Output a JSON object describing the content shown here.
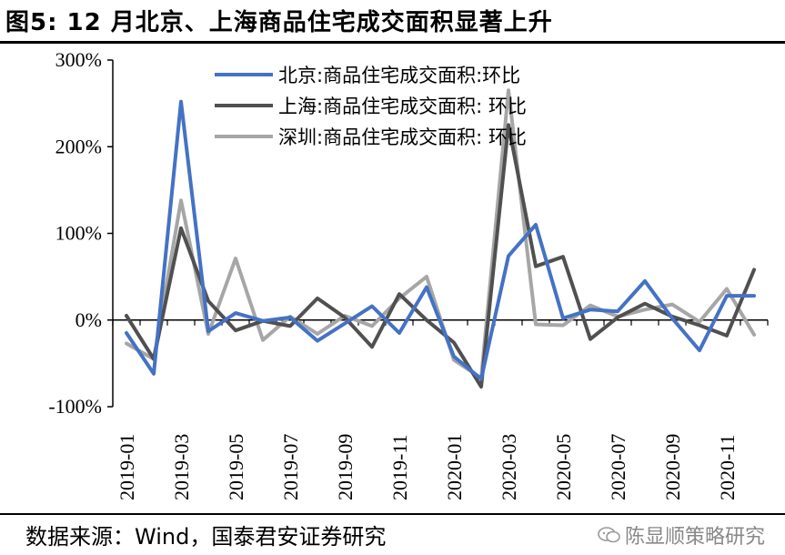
{
  "title": "图5: 12 月北京、上海商品住宅成交面积显著上升",
  "source": "数据来源：Wind，国泰君安证券研究",
  "watermark": "陈显顺策略研究",
  "chart_data": {
    "type": "line",
    "title": "",
    "xlabel": "",
    "ylabel": "",
    "ylim": [
      -100,
      300
    ],
    "y_ticks": [
      "300%",
      "200%",
      "100%",
      "0%",
      "-100%"
    ],
    "y_tick_values": [
      300,
      200,
      100,
      0,
      -100
    ],
    "categories": [
      "2019-01",
      "2019-02",
      "2019-03",
      "2019-04",
      "2019-05",
      "2019-06",
      "2019-07",
      "2019-08",
      "2019-09",
      "2019-10",
      "2019-11",
      "2019-12",
      "2020-01",
      "2020-02",
      "2020-03",
      "2020-04",
      "2020-05",
      "2020-06",
      "2020-07",
      "2020-08",
      "2020-09",
      "2020-10",
      "2020-11",
      "2020-12"
    ],
    "x_tick_labels": [
      "2019-01",
      "2019-03",
      "2019-05",
      "2019-07",
      "2019-09",
      "2019-11",
      "2020-01",
      "2020-03",
      "2020-05",
      "2020-07",
      "2020-09",
      "2020-11"
    ],
    "legend_position": "top",
    "series": [
      {
        "name": "北京:商品住宅成交面积:环比",
        "color": "#4472c4",
        "values": [
          -15,
          -62,
          252,
          -13,
          8,
          -1,
          3,
          -24,
          -4,
          16,
          -15,
          38,
          -42,
          -68,
          74,
          110,
          2,
          12,
          10,
          45,
          2,
          -35,
          28,
          28
        ]
      },
      {
        "name": "上海:商品住宅成交面积:  环比",
        "color": "#505050",
        "values": [
          5,
          -45,
          106,
          22,
          -12,
          -1,
          -7,
          25,
          3,
          -31,
          30,
          0,
          -26,
          -77,
          225,
          62,
          73,
          -22,
          3,
          19,
          4,
          -6,
          -18,
          58
        ]
      },
      {
        "name": "深圳:商品住宅成交面积:  环比",
        "color": "#a6a6a6",
        "values": [
          -27,
          -45,
          138,
          -16,
          71,
          -23,
          4,
          -16,
          5,
          -7,
          25,
          50,
          -46,
          -67,
          265,
          -5,
          -6,
          17,
          4,
          12,
          18,
          -2,
          36,
          -17
        ]
      }
    ]
  }
}
